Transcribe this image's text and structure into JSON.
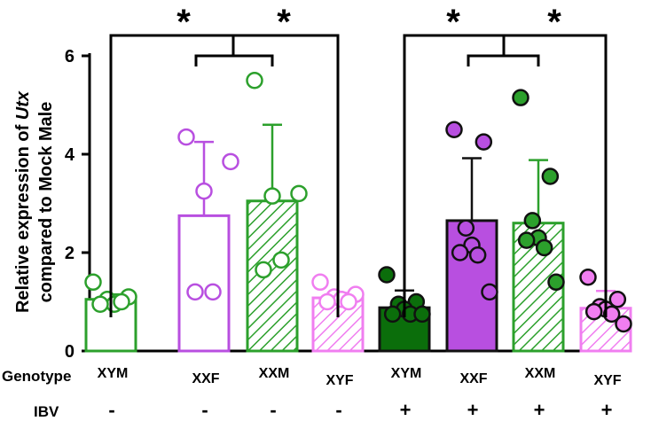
{
  "chart_data": {
    "type": "bar",
    "title": "",
    "ylabel_line1_prefix": "Relative expression of ",
    "ylabel_line1_gene": "Utx",
    "ylabel_line2": "compared to Mock Male",
    "ylim": [
      0,
      6.5
    ],
    "yticks": [
      "0",
      "2",
      "4",
      "6"
    ],
    "grid": false,
    "row_labels": {
      "genotype_title": "Genotype",
      "ibv_title": "IBV"
    },
    "significance_marker": "*",
    "categories": [
      {
        "genotype": "XYM",
        "ibv": "-",
        "color": "#2ca02c",
        "fill": "none",
        "mean": 1.05,
        "sd": 0.1
      },
      {
        "genotype": "XXF",
        "ibv": "-",
        "color": "#b84fe0",
        "fill": "none",
        "mean": 2.75,
        "sd": 1.5
      },
      {
        "genotype": "XXM",
        "ibv": "-",
        "color": "#2ca02c",
        "fill": "hatch",
        "mean": 3.05,
        "sd": 1.55
      },
      {
        "genotype": "XYF",
        "ibv": "-",
        "color": "#f07ef0",
        "fill": "hatch",
        "mean": 1.08,
        "sd": 0.1
      },
      {
        "genotype": "XYM",
        "ibv": "+",
        "color": "#0b6e0b",
        "fill": "solid",
        "mean": 0.88,
        "sd": 0.35
      },
      {
        "genotype": "XXF",
        "ibv": "+",
        "color": "#b84fe0",
        "fill": "solid",
        "mean": 2.65,
        "sd": 1.27
      },
      {
        "genotype": "XXM",
        "ibv": "+",
        "color": "#2ca02c",
        "fill": "hatch",
        "mean": 2.6,
        "sd": 1.28
      },
      {
        "genotype": "XYF",
        "ibv": "+",
        "color": "#f07ef0",
        "fill": "hatch",
        "mean": 0.87,
        "sd": 0.35
      }
    ],
    "points": [
      [
        1.4,
        1.1,
        1.05,
        0.95,
        0.95,
        1.0
      ],
      [
        4.35,
        3.85,
        3.25,
        1.2,
        1.2
      ],
      [
        5.5,
        3.2,
        3.15,
        1.85,
        1.65
      ],
      [
        1.4,
        1.15,
        1.1,
        1.05,
        1.0,
        1.0
      ],
      [
        1.55,
        1.0,
        0.95,
        0.85,
        0.75,
        0.75,
        0.75
      ],
      [
        4.5,
        4.25,
        2.5,
        2.15,
        2.0,
        1.95,
        1.2
      ],
      [
        5.15,
        3.55,
        2.65,
        2.3,
        2.25,
        2.1,
        1.4
      ],
      [
        1.5,
        1.05,
        0.9,
        0.85,
        0.8,
        0.75,
        0.55
      ]
    ]
  }
}
